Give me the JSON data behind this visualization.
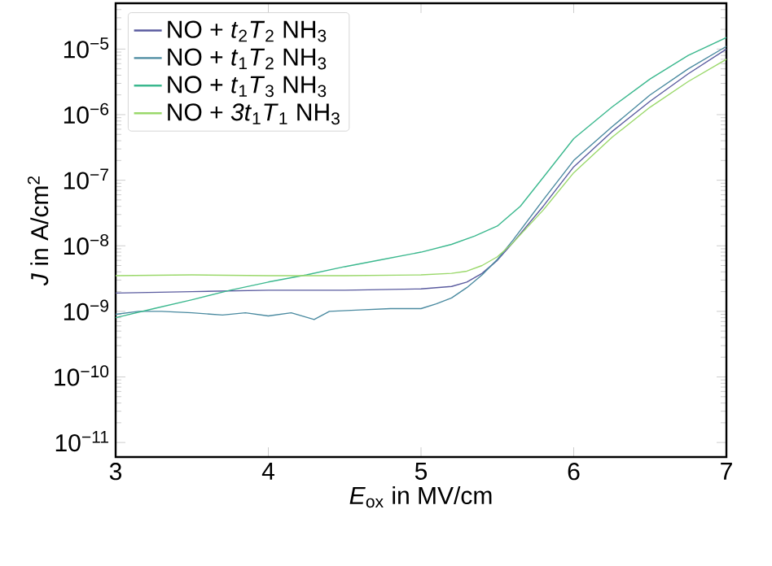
{
  "chart_data": {
    "type": "line",
    "xlabel": "*E*$_{ox}$ in MV/cm",
    "ylabel": "*J* in A/cm$^{2}$",
    "log": "y",
    "grid": false,
    "legend": "top left",
    "marker": "none",
    "line_style": "solid",
    "xlim": [
      3,
      7
    ],
    "xticks": [
      3,
      4,
      5,
      6,
      7
    ],
    "ylim": [
      6e-12,
      5e-05
    ],
    "yticks": [
      {
        "value": 1e-11,
        "label": "10$^{−11}$"
      },
      {
        "value": 1e-10,
        "label": "10$^{−10}$"
      },
      {
        "value": 1e-09,
        "label": "10$^{−9}$"
      },
      {
        "value": 1e-08,
        "label": "10$^{−8}$"
      },
      {
        "value": 1e-07,
        "label": "10$^{−7}$"
      },
      {
        "value": 1e-06,
        "label": "10$^{−6}$"
      },
      {
        "value": 1e-05,
        "label": "10$^{−5}$"
      }
    ],
    "series": [
      {
        "name": "NO + *t*$_{2}$*T*$_{2}$ NH$_{3}$",
        "color": "#5a5b9f",
        "x": [
          3,
          3.5,
          4,
          4.5,
          5,
          5.2,
          5.3,
          5.4,
          5.5,
          5.6,
          5.8,
          6,
          6.25,
          6.5,
          6.75,
          7
        ],
        "values": [
          1.9e-09,
          2e-09,
          2.1e-09,
          2.1e-09,
          2.2e-09,
          2.4e-09,
          2.8e-09,
          3.8e-09,
          6e-09,
          1.1e-08,
          4e-08,
          1.6e-07,
          5.5e-07,
          1.6e-06,
          4.2e-06,
          1e-05
        ]
      },
      {
        "name": "NO + *t*$_{1}$*T*$_{2}$ NH$_{3}$",
        "color": "#4a8aa0",
        "x": [
          3,
          3.15,
          3.3,
          3.5,
          3.7,
          3.85,
          4,
          4.15,
          4.3,
          4.4,
          4.6,
          4.8,
          5,
          5.1,
          5.2,
          5.3,
          5.4,
          5.5,
          5.6,
          5.8,
          6,
          6.25,
          6.5,
          6.75,
          7
        ],
        "values": [
          9e-10,
          1e-09,
          1e-09,
          9.5e-10,
          8.8e-10,
          9.5e-10,
          8.5e-10,
          9.5e-10,
          7.5e-10,
          1e-09,
          1.05e-09,
          1.1e-09,
          1.1e-09,
          1.3e-09,
          1.6e-09,
          2.3e-09,
          3.6e-09,
          6.2e-09,
          1.2e-08,
          5e-08,
          2e-07,
          6.5e-07,
          2e-06,
          5e-06,
          1.1e-05
        ]
      },
      {
        "name": "NO + *t*$_{1}$*T*$_{3}$ NH$_{3}$",
        "color": "#3bb88e",
        "x": [
          3,
          3.25,
          3.5,
          3.75,
          4,
          4.25,
          4.5,
          4.75,
          5,
          5.2,
          5.35,
          5.5,
          5.65,
          5.8,
          6,
          6.25,
          6.5,
          6.75,
          7
        ],
        "values": [
          8e-10,
          1.1e-09,
          1.5e-09,
          2.1e-09,
          2.8e-09,
          3.6e-09,
          4.8e-09,
          6.2e-09,
          8e-09,
          1.05e-08,
          1.4e-08,
          2e-08,
          4e-08,
          1.1e-07,
          4.3e-07,
          1.3e-06,
          3.5e-06,
          8e-06,
          1.5e-05
        ]
      },
      {
        "name": "NO + *3t*$_{1}$*T*$_{1}$ NH$_{3}$",
        "color": "#9ad86a",
        "x": [
          3,
          3.5,
          4,
          4.5,
          5,
          5.2,
          5.3,
          5.4,
          5.5,
          5.6,
          5.8,
          6,
          6.25,
          6.5,
          6.75,
          7
        ],
        "values": [
          3.5e-09,
          3.6e-09,
          3.5e-09,
          3.5e-09,
          3.6e-09,
          3.8e-09,
          4.1e-09,
          5e-09,
          6.8e-09,
          1.1e-08,
          3.5e-08,
          1.3e-07,
          4.5e-07,
          1.3e-06,
          3.2e-06,
          7e-06
        ]
      }
    ]
  }
}
